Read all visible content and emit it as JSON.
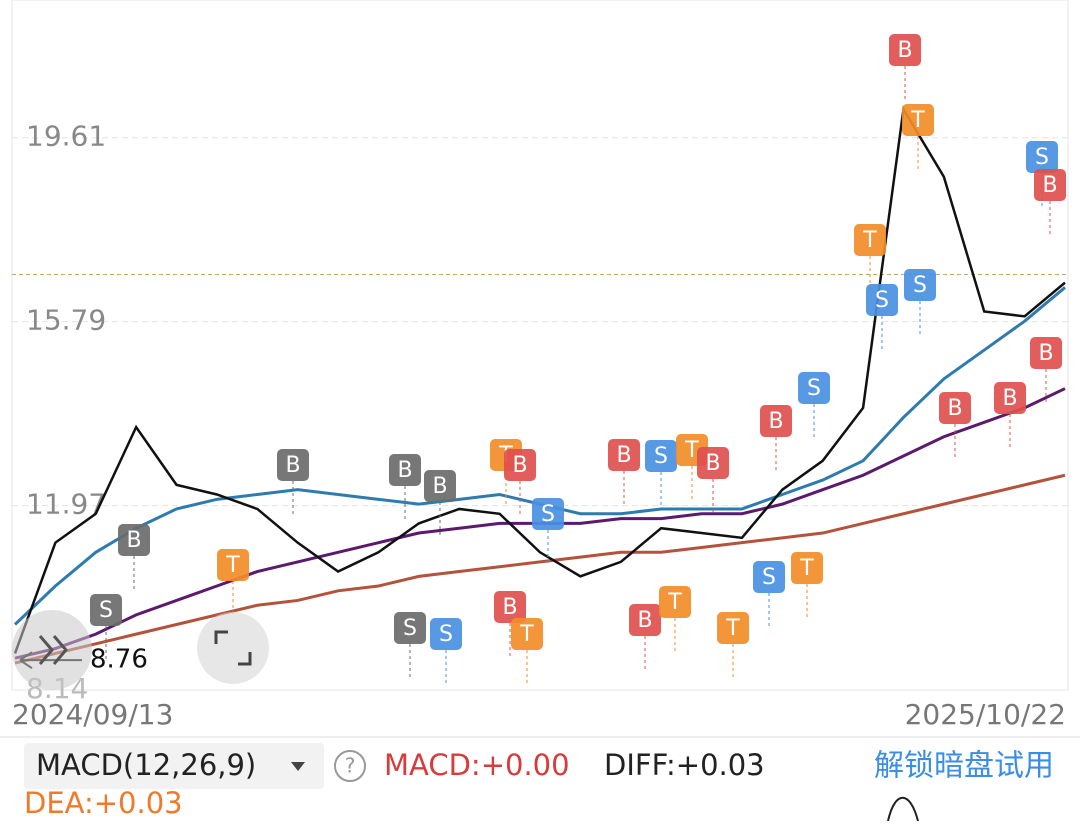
{
  "chart_data": {
    "type": "line",
    "start_date": "2024/09/13",
    "end_date": "2025/10/22",
    "ylim": [
      8.14,
      22.47
    ],
    "yticks": [
      8.14,
      11.97,
      15.79,
      19.61
    ],
    "grid": true,
    "low_label": "8.76",
    "low_value": 8.76,
    "last_price": 16.77,
    "series": [
      {
        "name": null,
        "color": "#111111",
        "values": [
          8.9,
          11.2,
          11.8,
          13.6,
          12.4,
          12.2,
          11.9,
          11.2,
          10.6,
          11.0,
          11.6,
          11.9,
          11.8,
          11.0,
          10.5,
          10.8,
          11.5,
          11.4,
          11.3,
          12.3,
          12.9,
          14.0,
          20.2,
          18.8,
          16.0,
          15.9,
          16.6
        ]
      },
      {
        "name": null,
        "color": "#2e7bb0",
        "values": [
          9.5,
          10.3,
          11.0,
          11.5,
          11.9,
          12.1,
          12.2,
          12.3,
          12.2,
          12.1,
          12.0,
          12.1,
          12.2,
          12.0,
          11.8,
          11.8,
          11.9,
          11.9,
          11.9,
          12.2,
          12.5,
          12.9,
          13.8,
          14.6,
          15.2,
          15.8,
          16.5
        ]
      },
      {
        "name": null,
        "color": "#5b1a6e",
        "values": [
          8.8,
          9.0,
          9.3,
          9.7,
          10.0,
          10.3,
          10.6,
          10.8,
          11.0,
          11.2,
          11.4,
          11.5,
          11.6,
          11.6,
          11.6,
          11.7,
          11.7,
          11.8,
          11.8,
          12.0,
          12.3,
          12.6,
          13.0,
          13.4,
          13.7,
          14.0,
          14.4
        ]
      },
      {
        "name": null,
        "color": "#b5523b",
        "values": [
          8.7,
          8.9,
          9.1,
          9.3,
          9.5,
          9.7,
          9.9,
          10.0,
          10.2,
          10.3,
          10.5,
          10.6,
          10.7,
          10.8,
          10.9,
          11.0,
          11.0,
          11.1,
          11.2,
          11.3,
          11.4,
          11.6,
          11.8,
          12.0,
          12.2,
          12.4,
          12.6
        ]
      }
    ],
    "signals": [
      {
        "label": "B",
        "color": "#6b6b6b"
      },
      {
        "label": "B",
        "color": "#6b6b6b"
      },
      {
        "label": "S",
        "color": "#6b6b6b"
      },
      {
        "label": "T",
        "color": "#f28c28"
      },
      {
        "label": "S",
        "color": "#6b6b6b"
      },
      {
        "label": "S",
        "color": "#4a90e2"
      },
      {
        "label": "B",
        "color": "#6b6b6b"
      },
      {
        "label": "B",
        "color": "#6b6b6b"
      },
      {
        "label": "T",
        "color": "#f28c28"
      },
      {
        "label": "B",
        "color": "#e0504e"
      },
      {
        "label": "S",
        "color": "#4a90e2"
      },
      {
        "label": "B",
        "color": "#e0504e"
      },
      {
        "label": "T",
        "color": "#f28c28"
      },
      {
        "label": "B",
        "color": "#e0504e"
      },
      {
        "label": "S",
        "color": "#4a90e2"
      },
      {
        "label": "T",
        "color": "#f28c28"
      },
      {
        "label": "B",
        "color": "#e0504e"
      },
      {
        "label": "B",
        "color": "#e0504e"
      },
      {
        "label": "T",
        "color": "#f28c28"
      },
      {
        "label": "T",
        "color": "#f28c28"
      },
      {
        "label": "S",
        "color": "#4a90e2"
      },
      {
        "label": "T",
        "color": "#f28c28"
      },
      {
        "label": "B",
        "color": "#e0504e"
      },
      {
        "label": "S",
        "color": "#4a90e2"
      },
      {
        "label": "T",
        "color": "#f28c28"
      },
      {
        "label": "S",
        "color": "#4a90e2"
      },
      {
        "label": "S",
        "color": "#4a90e2"
      },
      {
        "label": "B",
        "color": "#e0504e"
      },
      {
        "label": "T",
        "color": "#f28c28"
      },
      {
        "label": "B",
        "color": "#e0504e"
      },
      {
        "label": "B",
        "color": "#e0504e"
      },
      {
        "label": "B",
        "color": "#e0504e"
      },
      {
        "label": "S",
        "color": "#4a90e2"
      },
      {
        "label": "B",
        "color": "#e0504e"
      }
    ]
  },
  "indicator": {
    "name": "MACD(12,26,9)",
    "macd": "MACD:+0.00",
    "diff": "DIFF:+0.03",
    "dea": "DEA:+0.03",
    "unlock": "解锁暗盘试用"
  }
}
